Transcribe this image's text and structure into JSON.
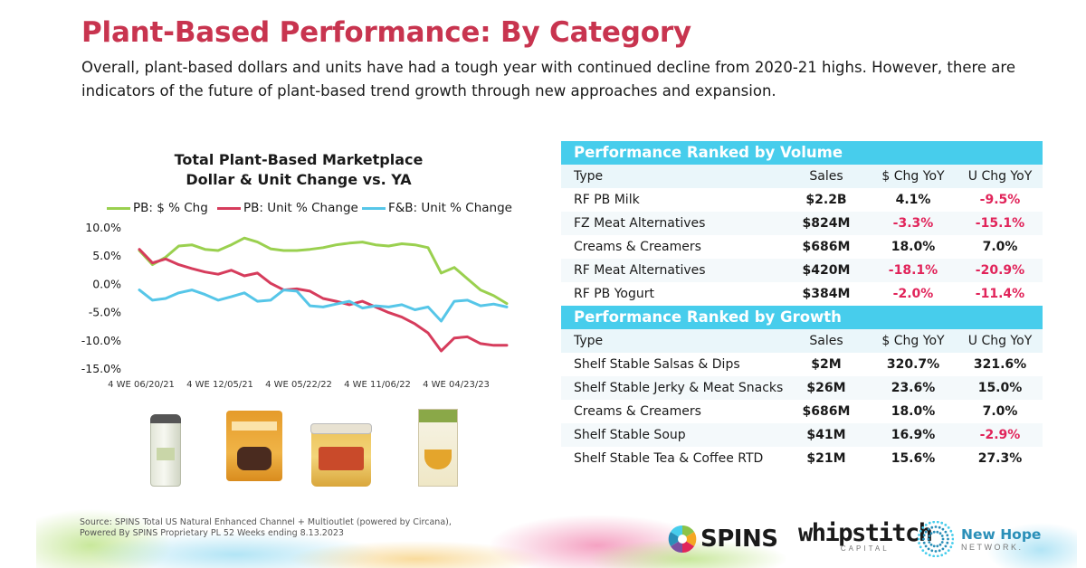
{
  "header": {
    "title": "Plant-Based Performance: By Category",
    "subtitle": "Overall, plant-based dollars and units have had a tough year with continued decline from 2020-21 highs.  However, there are indicators of the future of plant-based trend growth through new approaches and expansion."
  },
  "chart_data": {
    "type": "line",
    "title_line1": "Total Plant-Based Marketplace",
    "title_line2": "Dollar & Unit Change vs. YA",
    "xlabel": "",
    "ylabel": "",
    "ylim": [
      -15,
      10
    ],
    "y_ticks": [
      "10.0%",
      "5.0%",
      "0.0%",
      "-5.0%",
      "-10.0%",
      "-15.0%"
    ],
    "y_tick_values": [
      10,
      5,
      0,
      -5,
      -10,
      -15
    ],
    "x_tick_labels": [
      "4 WE 06/20/21",
      "4 WE 12/05/21",
      "4 WE 05/22/22",
      "4 WE 11/06/22",
      "4 WE 04/23/23"
    ],
    "x_tick_indices": [
      0,
      6,
      12,
      18,
      24
    ],
    "n_points": 29,
    "grid": false,
    "legend_placement": "top",
    "series": [
      {
        "name": "PB: $ % Chg",
        "color": "#9ad04f",
        "values": [
          6.0,
          3.5,
          4.8,
          6.8,
          7.0,
          6.2,
          6.0,
          7.0,
          8.2,
          7.5,
          6.3,
          6.0,
          6.0,
          6.2,
          6.5,
          7.0,
          7.3,
          7.5,
          7.0,
          6.8,
          7.2,
          7.0,
          6.5,
          2.0,
          3.0,
          1.0,
          -1.0,
          -2.0,
          -3.4
        ]
      },
      {
        "name": "PB: Unit % Change",
        "color": "#d63c5c",
        "values": [
          6.2,
          3.8,
          4.5,
          3.5,
          2.8,
          2.2,
          1.8,
          2.5,
          1.5,
          2.0,
          0.2,
          -1.0,
          -0.8,
          -1.2,
          -2.5,
          -3.0,
          -3.6,
          -3.0,
          -4.0,
          -5.0,
          -5.8,
          -7.0,
          -8.6,
          -11.8,
          -9.5,
          -9.3,
          -10.5,
          -10.8,
          -10.8
        ]
      },
      {
        "name": "F&B: Unit % Change",
        "color": "#56c6e8",
        "values": [
          -1.0,
          -2.8,
          -2.5,
          -1.5,
          -1.0,
          -1.8,
          -2.8,
          -2.2,
          -1.5,
          -3.0,
          -2.8,
          -1.0,
          -1.2,
          -3.8,
          -4.0,
          -3.5,
          -3.0,
          -4.2,
          -3.8,
          -4.0,
          -3.6,
          -4.5,
          -4.0,
          -6.5,
          -3.0,
          -2.8,
          -3.8,
          -3.5,
          -4.0
        ]
      }
    ]
  },
  "products": [
    {
      "icon": "beverage-can-icon"
    },
    {
      "icon": "snack-pouch-icon"
    },
    {
      "icon": "salsa-jar-icon"
    },
    {
      "icon": "soup-carton-icon"
    }
  ],
  "tables": {
    "columns": {
      "type": "Type",
      "sales": "Sales",
      "dchg": "$ Chg YoY",
      "uchg": "U Chg YoY"
    },
    "volume": {
      "title": "Performance Ranked by Volume",
      "rows": [
        {
          "type": "RF PB Milk",
          "sales": "$2.2B",
          "dchg": "4.1%",
          "uchg": "-9.5%",
          "dneg": false,
          "uneg": true
        },
        {
          "type": "FZ Meat Alternatives",
          "sales": "$824M",
          "dchg": "-3.3%",
          "uchg": "-15.1%",
          "dneg": true,
          "uneg": true
        },
        {
          "type": "Creams & Creamers",
          "sales": "$686M",
          "dchg": "18.0%",
          "uchg": "7.0%",
          "dneg": false,
          "uneg": false
        },
        {
          "type": "RF Meat Alternatives",
          "sales": "$420M",
          "dchg": "-18.1%",
          "uchg": "-20.9%",
          "dneg": true,
          "uneg": true
        },
        {
          "type": "RF PB Yogurt",
          "sales": "$384M",
          "dchg": "-2.0%",
          "uchg": "-11.4%",
          "dneg": true,
          "uneg": true
        }
      ]
    },
    "growth": {
      "title": "Performance Ranked by Growth",
      "rows": [
        {
          "type": "Shelf Stable Salsas & Dips",
          "sales": "$2M",
          "dchg": "320.7%",
          "uchg": "321.6%",
          "dneg": false,
          "uneg": false
        },
        {
          "type": "Shelf Stable Jerky & Meat Snacks",
          "sales": "$26M",
          "dchg": "23.6%",
          "uchg": "15.0%",
          "dneg": false,
          "uneg": false
        },
        {
          "type": "Creams & Creamers",
          "sales": "$686M",
          "dchg": "18.0%",
          "uchg": "7.0%",
          "dneg": false,
          "uneg": false
        },
        {
          "type": "Shelf Stable Soup",
          "sales": "$41M",
          "dchg": "16.9%",
          "uchg": "-2.9%",
          "dneg": false,
          "uneg": true
        },
        {
          "type": "Shelf Stable Tea & Coffee RTD",
          "sales": "$21M",
          "dchg": "15.6%",
          "uchg": "27.3%",
          "dneg": false,
          "uneg": false
        }
      ]
    }
  },
  "footer": {
    "source_line1": "Source: SPINS Total US Natural Enhanced Channel + Multioutlet (powered by Circana),",
    "source_line2": "Powered By SPINS Proprietary PL 52 Weeks ending 8.13.2023",
    "logos": {
      "spins": "SPINS",
      "whipstitch": "whipstitch",
      "whipstitch_sub": "CAPITAL",
      "newhope": "New Hope",
      "newhope_sub": "NETWORK."
    }
  }
}
